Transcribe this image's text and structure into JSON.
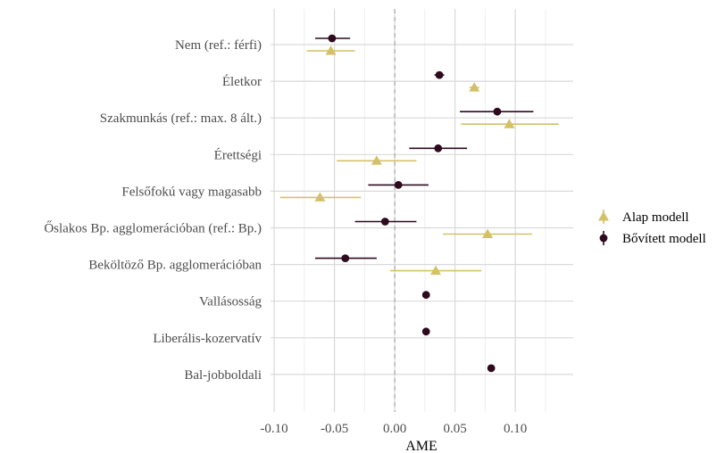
{
  "chart_data": {
    "type": "scatter",
    "subtype": "coefficient-plot",
    "xlabel": "AME",
    "xlim": [
      -0.103,
      0.148
    ],
    "xticks": [
      -0.1,
      -0.05,
      0.0,
      0.05,
      0.1
    ],
    "xtick_labels": [
      "-0.10",
      "-0.05",
      "0.00",
      "0.05",
      "0.10"
    ],
    "reference_line": 0,
    "grid": true,
    "legend_position": "right",
    "categories": [
      "Nem (ref.: férfi)",
      "Életkor",
      "Szakmunkás (ref.: max. 8 ált.)",
      "Érettségi",
      "Felsőfokú vagy magasabb",
      "Őslakos Bp. agglomerációban (ref.: Bp.)",
      "Beköltöző Bp. agglomerációban",
      "Vallásosság",
      "Liberális-kozervatív",
      "Bal-jobboldali"
    ],
    "series": [
      {
        "name": "Alap modell",
        "marker": "triangle",
        "color": "#d4c167",
        "points": [
          {
            "category": "Nem (ref.: férfi)",
            "estimate": -0.053,
            "low": -0.073,
            "high": -0.033
          },
          {
            "category": "Életkor",
            "estimate": 0.066,
            "low": 0.062,
            "high": 0.07
          },
          {
            "category": "Szakmunkás (ref.: max. 8 ált.)",
            "estimate": 0.095,
            "low": 0.055,
            "high": 0.136
          },
          {
            "category": "Érettségi",
            "estimate": -0.015,
            "low": -0.048,
            "high": 0.018
          },
          {
            "category": "Felsőfokú vagy magasabb",
            "estimate": -0.062,
            "low": -0.095,
            "high": -0.028
          },
          {
            "category": "Őslakos Bp. agglomerációban (ref.: Bp.)",
            "estimate": 0.077,
            "low": 0.04,
            "high": 0.114
          },
          {
            "category": "Beköltöző Bp. agglomerációban",
            "estimate": 0.034,
            "low": -0.004,
            "high": 0.072
          }
        ]
      },
      {
        "name": "Bővített modell",
        "marker": "circle",
        "color": "#2e0a1e",
        "points": [
          {
            "category": "Nem (ref.: férfi)",
            "estimate": -0.052,
            "low": -0.066,
            "high": -0.037
          },
          {
            "category": "Életkor",
            "estimate": 0.037,
            "low": 0.033,
            "high": 0.041
          },
          {
            "category": "Szakmunkás (ref.: max. 8 ált.)",
            "estimate": 0.085,
            "low": 0.054,
            "high": 0.115
          },
          {
            "category": "Érettségi",
            "estimate": 0.036,
            "low": 0.012,
            "high": 0.06
          },
          {
            "category": "Felsőfokú vagy magasabb",
            "estimate": 0.003,
            "low": -0.022,
            "high": 0.028
          },
          {
            "category": "Őslakos Bp. agglomerációban (ref.: Bp.)",
            "estimate": -0.008,
            "low": -0.033,
            "high": 0.018
          },
          {
            "category": "Beköltöző Bp. agglomerációban",
            "estimate": -0.041,
            "low": -0.066,
            "high": -0.015
          },
          {
            "category": "Vallásosság",
            "estimate": 0.026,
            "low": 0.024,
            "high": 0.028
          },
          {
            "category": "Liberális-kozervatív",
            "estimate": 0.026,
            "low": 0.024,
            "high": 0.028
          },
          {
            "category": "Bal-jobboldali",
            "estimate": 0.08,
            "low": 0.078,
            "high": 0.082
          }
        ]
      }
    ]
  }
}
